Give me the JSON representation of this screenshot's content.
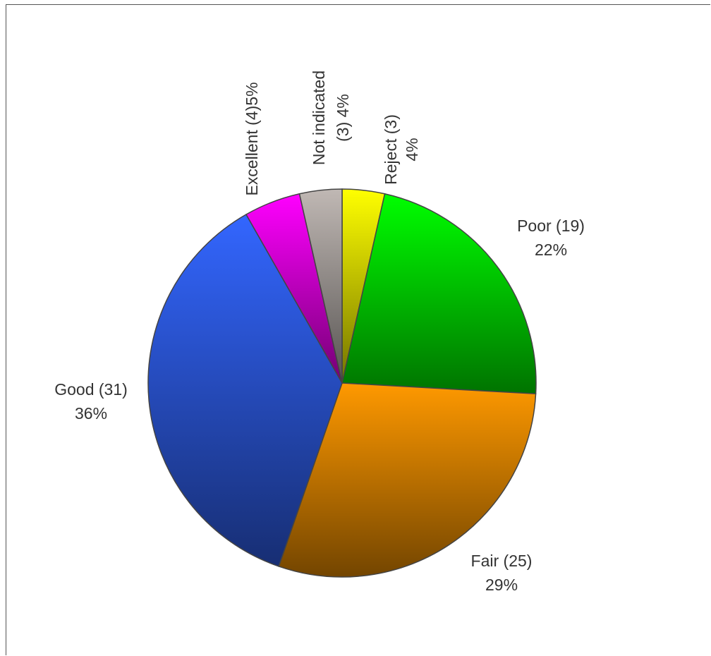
{
  "chart_data": {
    "type": "pie",
    "title": "",
    "slices": [
      {
        "category": "Reject",
        "count": 3,
        "percent": 4,
        "color": "#ffff00",
        "label_lines": [
          "Reject (3)",
          "4%"
        ]
      },
      {
        "category": "Poor",
        "count": 19,
        "percent": 22,
        "color": "#00ff00",
        "label_lines": [
          "Poor (19)",
          "22%"
        ]
      },
      {
        "category": "Fair",
        "count": 25,
        "percent": 29,
        "color": "#ff9900",
        "label_lines": [
          "Fair (25)",
          "29%"
        ]
      },
      {
        "category": "Good",
        "count": 31,
        "percent": 36,
        "color": "#3366ff",
        "label_lines": [
          "Good (31)",
          "36%"
        ]
      },
      {
        "category": "Excellent",
        "count": 4,
        "percent": 5,
        "color": "#ff00ff",
        "label_lines": [
          "Excellent (4)5%"
        ]
      },
      {
        "category": "Not indicated",
        "count": 3,
        "percent": 4,
        "color": "#c0b8b4",
        "label_lines": [
          "Not indicated",
          "(3) 4%"
        ]
      }
    ],
    "legend": "none",
    "start_angle": "12 o'clock",
    "direction": "clockwise"
  }
}
